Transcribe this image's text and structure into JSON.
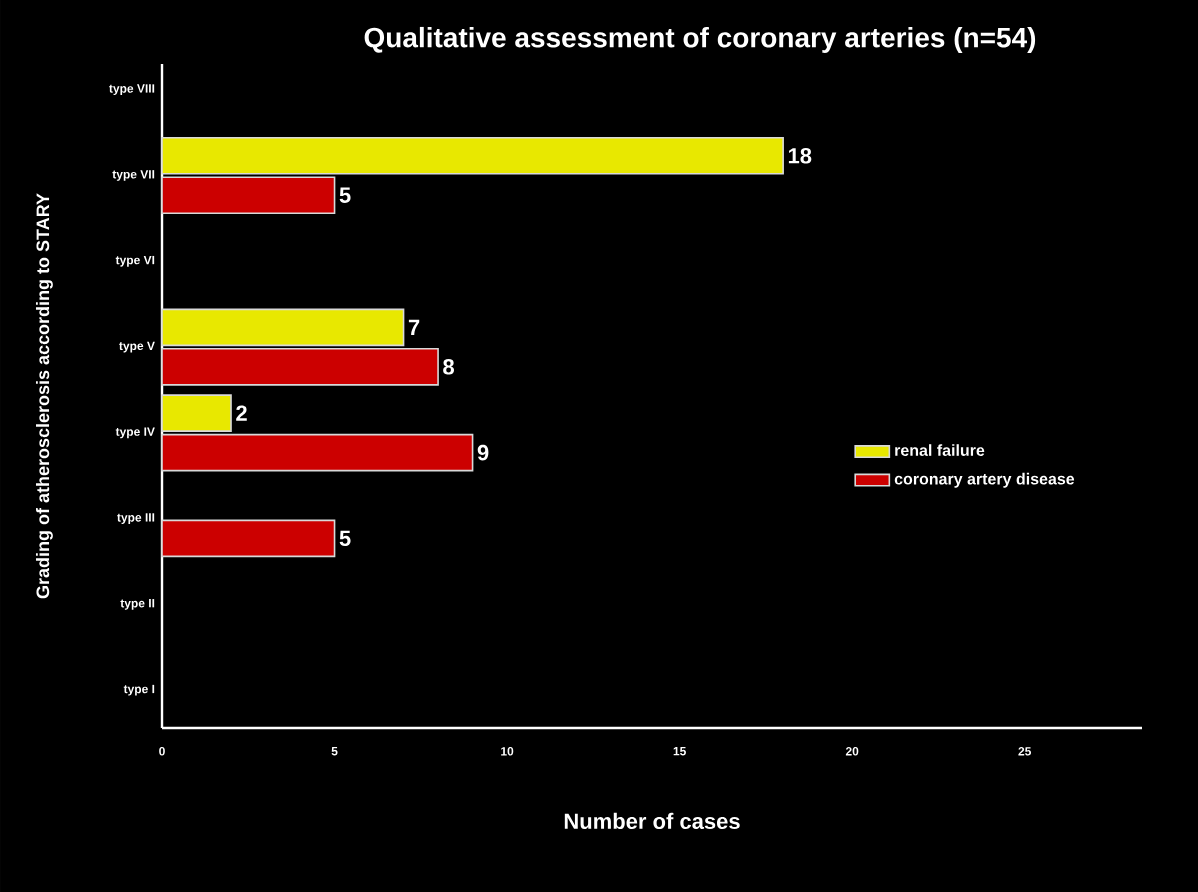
{
  "chart_data": {
    "type": "bar",
    "orientation": "horizontal",
    "title": "Qualitative assessment of coronary arteries (n=54)",
    "xlabel": "Number of cases",
    "ylabel": "Grading of atherosclerosis according to STARY",
    "categories": [
      "type VIII",
      "type VII",
      "type VI",
      "type V",
      "type IV",
      "type III",
      "type II",
      "type I"
    ],
    "series": [
      {
        "name": "renal failure",
        "color": "#e8e800",
        "values": [
          null,
          18,
          null,
          7,
          2,
          null,
          null,
          null
        ]
      },
      {
        "name": "coronary artery disease",
        "color": "#cc0000",
        "values": [
          null,
          5,
          null,
          8,
          9,
          5,
          null,
          null
        ]
      }
    ],
    "xlim": [
      0,
      28.4
    ],
    "xticks": [
      0,
      5,
      10,
      15,
      20,
      25
    ],
    "data_labels": true,
    "legend": "right",
    "grid": false
  }
}
